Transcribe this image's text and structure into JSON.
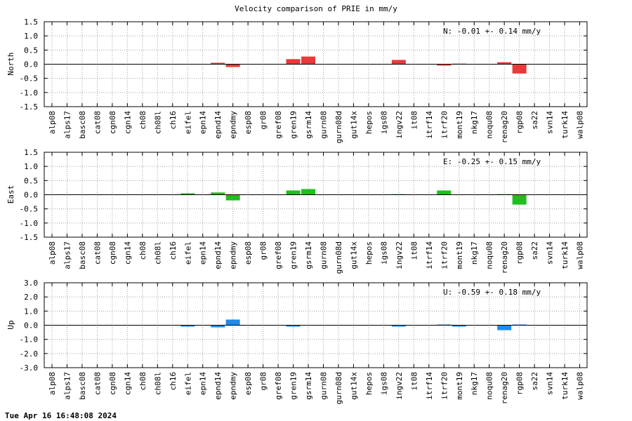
{
  "title": "Velocity comparison of PRIE in mm/y",
  "footer": "Tue Apr 16 16:48:08 2024",
  "chart_data": [
    {
      "type": "bar",
      "ylabel": "North",
      "color": "#e83a3a",
      "ylim": [
        -1.5,
        1.5
      ],
      "yticks": [
        "1.5",
        "1.0",
        "0.5",
        "0.0",
        "-0.5",
        "-1.0",
        "-1.5"
      ],
      "annotation": "N:  -0.01 +-  0.14 mm/y",
      "grid": true,
      "categories": [
        "alp08",
        "alps17",
        "basc08",
        "cat08",
        "cgn08",
        "cgn14",
        "ch08",
        "ch08l",
        "ch16",
        "eifel",
        "epn14",
        "epnd14",
        "epndmy",
        "esp08",
        "gr08",
        "gref08",
        "gren19",
        "gsrm14",
        "gurn08",
        "gurn08d",
        "gut14x",
        "hepos",
        "igs08",
        "ingv22",
        "it08",
        "itrf14",
        "itrf20",
        "mont19",
        "nkg17",
        "noqu08",
        "renag20",
        "rgp08",
        "sa22",
        "svn14",
        "turk14",
        "walp08"
      ],
      "values": [
        0,
        0,
        0,
        0,
        0,
        0,
        0,
        0,
        0,
        0,
        0,
        0.05,
        -0.1,
        0,
        0,
        0,
        0.18,
        0.27,
        0,
        0,
        0,
        0,
        0,
        0.15,
        0,
        0,
        -0.05,
        0.02,
        0,
        0,
        0.07,
        -0.33,
        0,
        0,
        0,
        0
      ]
    },
    {
      "type": "bar",
      "ylabel": "East",
      "color": "#1fbf1f",
      "ylim": [
        -1.5,
        1.5
      ],
      "yticks": [
        "1.5",
        "1.0",
        "0.5",
        "0.0",
        "-0.5",
        "-1.0",
        "-1.5"
      ],
      "annotation": "E:  -0.25 +-  0.15 mm/y",
      "grid": true,
      "categories": [
        "alp08",
        "alps17",
        "basc08",
        "cat08",
        "cgn08",
        "cgn14",
        "ch08",
        "ch08l",
        "ch16",
        "eifel",
        "epn14",
        "epnd14",
        "epndmy",
        "esp08",
        "gr08",
        "gref08",
        "gren19",
        "gsrm14",
        "gurn08",
        "gurn08d",
        "gut14x",
        "hepos",
        "igs08",
        "ingv22",
        "it08",
        "itrf14",
        "itrf20",
        "mont19",
        "nkg17",
        "noqu08",
        "renag20",
        "rgp08",
        "sa22",
        "svn14",
        "turk14",
        "walp08"
      ],
      "values": [
        0,
        0,
        0,
        0,
        0,
        0,
        0,
        0,
        0,
        0.05,
        0,
        0.08,
        -0.2,
        0,
        0,
        0,
        0.15,
        0.2,
        0,
        0,
        0,
        0,
        0,
        0.02,
        0,
        0,
        0.15,
        0,
        0,
        0,
        0.02,
        -0.35,
        0,
        0,
        0,
        0
      ]
    },
    {
      "type": "bar",
      "ylabel": "Up",
      "color": "#1a8cf0",
      "ylim": [
        -3.0,
        3.0
      ],
      "yticks": [
        "3.0",
        "2.0",
        "1.0",
        "0.0",
        "-1.0",
        "-2.0",
        "-3.0"
      ],
      "annotation": "U:  -0.59 +-  0.18 mm/y",
      "grid": true,
      "categories": [
        "alp08",
        "alps17",
        "basc08",
        "cat08",
        "cgn08",
        "cgn14",
        "ch08",
        "ch08l",
        "ch16",
        "eifel",
        "epn14",
        "epnd14",
        "epndmy",
        "esp08",
        "gr08",
        "gref08",
        "gren19",
        "gsrm14",
        "gurn08",
        "gurn08d",
        "gut14x",
        "hepos",
        "igs08",
        "ingv22",
        "it08",
        "itrf14",
        "itrf20",
        "mont19",
        "nkg17",
        "noqu08",
        "renag20",
        "rgp08",
        "sa22",
        "svn14",
        "turk14",
        "walp08"
      ],
      "values": [
        0,
        0,
        0,
        0,
        0,
        0,
        0,
        0,
        0,
        -0.1,
        0,
        -0.15,
        0.4,
        0,
        0,
        0,
        -0.1,
        0,
        0,
        0,
        0,
        0,
        0,
        -0.1,
        0,
        0,
        0.05,
        -0.1,
        0,
        0,
        -0.35,
        0.05,
        0,
        0,
        0,
        0
      ]
    }
  ]
}
